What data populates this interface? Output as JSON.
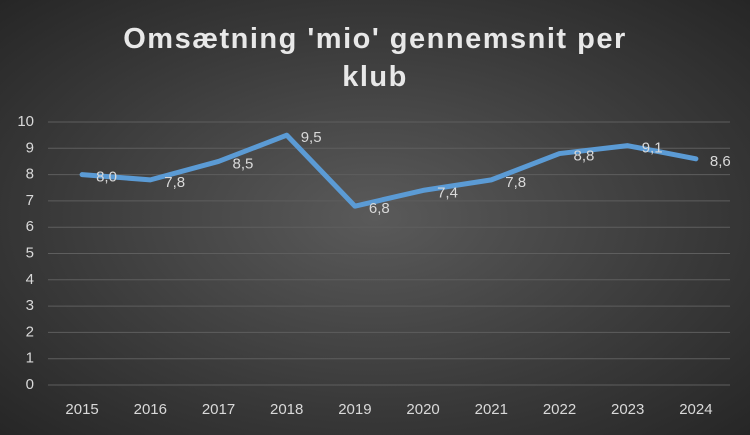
{
  "chart_data": {
    "type": "line",
    "title": "Omsætning 'mio' gennemsnit per klub",
    "categories": [
      "2015",
      "2016",
      "2017",
      "2018",
      "2019",
      "2020",
      "2021",
      "2022",
      "2023",
      "2024"
    ],
    "series": [
      {
        "name": "Omsætning",
        "color": "#5b9bd5",
        "values": [
          8.0,
          7.8,
          8.5,
          9.5,
          6.8,
          7.4,
          7.8,
          8.8,
          9.1,
          8.6
        ],
        "value_labels": [
          "8,0",
          "7,8",
          "8,5",
          "9,5",
          "6,8",
          "7,4",
          "7,8",
          "8,8",
          "9,1",
          "8,6"
        ]
      }
    ],
    "ylim": [
      0,
      10
    ],
    "yticks": [
      0,
      1,
      2,
      3,
      4,
      5,
      6,
      7,
      8,
      9,
      10
    ],
    "grid": true
  }
}
